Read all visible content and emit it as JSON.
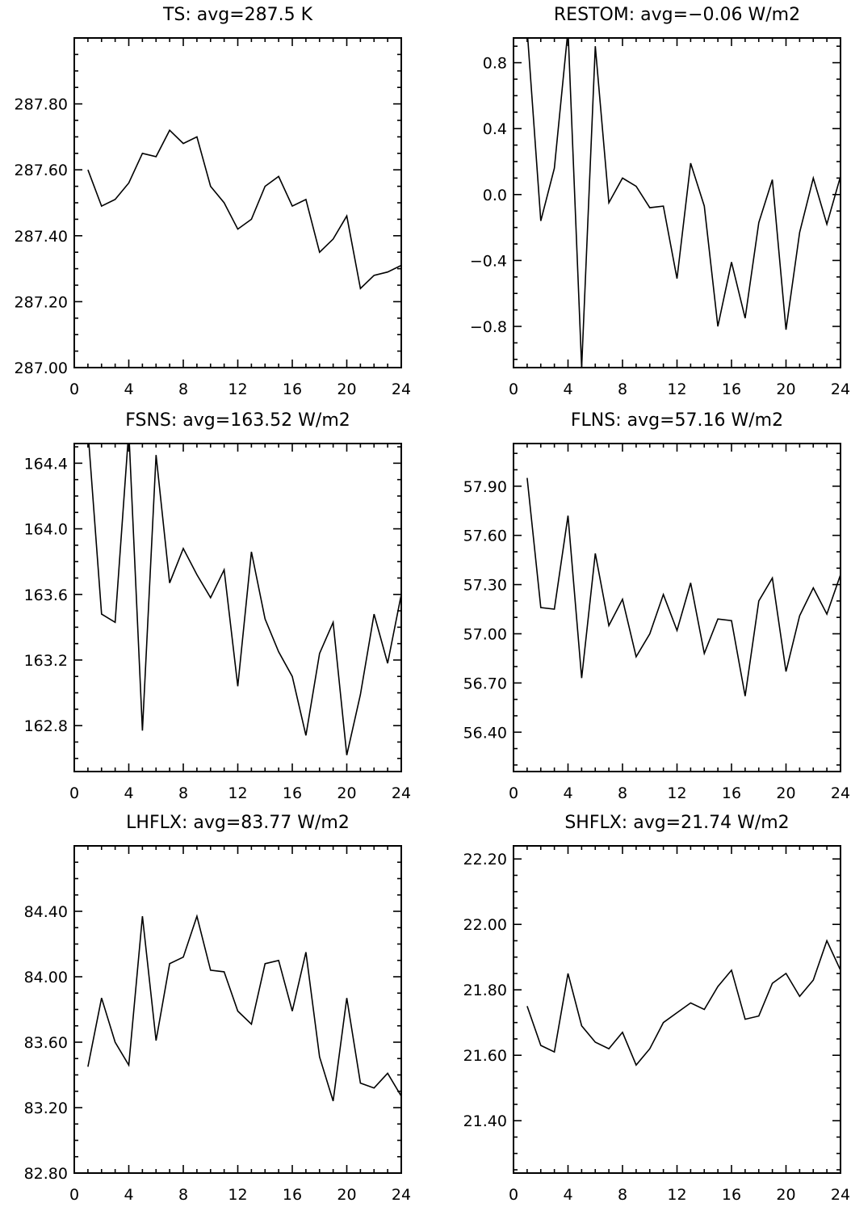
{
  "chart_data": [
    {
      "type": "line",
      "title": "TS: avg=287.5 K",
      "xlim": [
        0,
        24
      ],
      "ylim": [
        287.0,
        288.0
      ],
      "xticks": [
        0,
        4,
        8,
        12,
        16,
        20,
        24
      ],
      "xtick_labels": [
        "0",
        "4",
        "8",
        "12",
        "16",
        "20",
        "24"
      ],
      "yticks": [
        287.0,
        287.2,
        287.4,
        287.6,
        287.8
      ],
      "ytick_labels": [
        "287.00",
        "287.20",
        "287.40",
        "287.60",
        "287.80"
      ],
      "yminor": 0.05,
      "x": [
        1,
        2,
        3,
        4,
        5,
        6,
        7,
        8,
        9,
        10,
        11,
        12,
        13,
        14,
        15,
        16,
        17,
        18,
        19,
        20,
        21,
        22,
        23,
        24
      ],
      "y": [
        287.6,
        287.49,
        287.51,
        287.56,
        287.65,
        287.64,
        287.72,
        287.68,
        287.7,
        287.55,
        287.5,
        287.42,
        287.45,
        287.55,
        287.58,
        287.49,
        287.51,
        287.35,
        287.39,
        287.46,
        287.24,
        287.28,
        287.29,
        287.31
      ]
    },
    {
      "type": "line",
      "title": "RESTOM: avg=−0.06 W/m2",
      "xlim": [
        0,
        24
      ],
      "ylim": [
        -1.05,
        0.95
      ],
      "xticks": [
        0,
        4,
        8,
        12,
        16,
        20,
        24
      ],
      "xtick_labels": [
        "0",
        "4",
        "8",
        "12",
        "16",
        "20",
        "24"
      ],
      "yticks": [
        -0.8,
        -0.4,
        0.0,
        0.4,
        0.8
      ],
      "ytick_labels": [
        "−0.8",
        "−0.4",
        "0.0",
        "0.4",
        "0.8"
      ],
      "yminor": 0.1,
      "x": [
        1,
        2,
        3,
        4,
        5,
        6,
        7,
        8,
        9,
        10,
        11,
        12,
        13,
        14,
        15,
        16,
        17,
        18,
        19,
        20,
        21,
        22,
        23,
        24
      ],
      "y": [
        1.0,
        -0.16,
        0.16,
        1.0,
        -1.05,
        0.9,
        -0.05,
        0.1,
        0.05,
        -0.08,
        -0.07,
        -0.51,
        0.19,
        -0.07,
        -0.8,
        -0.41,
        -0.75,
        -0.17,
        0.09,
        -0.82,
        -0.23,
        0.1,
        -0.18,
        0.11
      ]
    },
    {
      "type": "line",
      "title": "FSNS: avg=163.52 W/m2",
      "xlim": [
        0,
        24
      ],
      "ylim": [
        162.52,
        164.52
      ],
      "xticks": [
        0,
        4,
        8,
        12,
        16,
        20,
        24
      ],
      "xtick_labels": [
        "0",
        "4",
        "8",
        "12",
        "16",
        "20",
        "24"
      ],
      "yticks": [
        162.8,
        163.2,
        163.6,
        164.0,
        164.4
      ],
      "ytick_labels": [
        "162.8",
        "163.2",
        "163.6",
        "164.0",
        "164.4"
      ],
      "yminor": 0.1,
      "x": [
        1,
        2,
        3,
        4,
        5,
        6,
        7,
        8,
        9,
        10,
        11,
        12,
        13,
        14,
        15,
        16,
        17,
        18,
        19,
        20,
        21,
        22,
        23,
        24
      ],
      "y": [
        164.6,
        163.48,
        163.43,
        164.6,
        162.77,
        164.45,
        163.67,
        163.88,
        163.72,
        163.58,
        163.75,
        163.04,
        163.86,
        163.45,
        163.25,
        163.1,
        162.74,
        163.24,
        163.43,
        162.62,
        162.99,
        163.48,
        163.18,
        163.6
      ]
    },
    {
      "type": "line",
      "title": "FLNS: avg=57.16 W/m2",
      "xlim": [
        0,
        24
      ],
      "ylim": [
        56.16,
        58.16
      ],
      "xticks": [
        0,
        4,
        8,
        12,
        16,
        20,
        24
      ],
      "xtick_labels": [
        "0",
        "4",
        "8",
        "12",
        "16",
        "20",
        "24"
      ],
      "yticks": [
        56.4,
        56.7,
        57.0,
        57.3,
        57.6,
        57.9
      ],
      "ytick_labels": [
        "56.40",
        "56.70",
        "57.00",
        "57.30",
        "57.60",
        "57.90"
      ],
      "yminor": 0.1,
      "x": [
        1,
        2,
        3,
        4,
        5,
        6,
        7,
        8,
        9,
        10,
        11,
        12,
        13,
        14,
        15,
        16,
        17,
        18,
        19,
        20,
        21,
        22,
        23,
        24
      ],
      "y": [
        57.95,
        57.16,
        57.15,
        57.72,
        56.73,
        57.49,
        57.05,
        57.21,
        56.86,
        57.0,
        57.24,
        57.02,
        57.31,
        56.88,
        57.09,
        57.08,
        56.62,
        57.2,
        57.34,
        56.77,
        57.11,
        57.28,
        57.12,
        57.36
      ]
    },
    {
      "type": "line",
      "title": "LHFLX: avg=83.77 W/m2",
      "xlim": [
        0,
        24
      ],
      "ylim": [
        82.8,
        84.8
      ],
      "xticks": [
        0,
        4,
        8,
        12,
        16,
        20,
        24
      ],
      "xtick_labels": [
        "0",
        "4",
        "8",
        "12",
        "16",
        "20",
        "24"
      ],
      "yticks": [
        82.8,
        83.2,
        83.6,
        84.0,
        84.4
      ],
      "ytick_labels": [
        "82.80",
        "83.20",
        "83.60",
        "84.00",
        "84.40"
      ],
      "yminor": 0.1,
      "x": [
        1,
        2,
        3,
        4,
        5,
        6,
        7,
        8,
        9,
        10,
        11,
        12,
        13,
        14,
        15,
        16,
        17,
        18,
        19,
        20,
        21,
        22,
        23,
        24
      ],
      "y": [
        83.45,
        83.87,
        83.6,
        83.46,
        84.37,
        83.61,
        84.08,
        84.12,
        84.37,
        84.04,
        84.03,
        83.79,
        83.71,
        84.08,
        84.1,
        83.79,
        84.15,
        83.51,
        83.24,
        83.87,
        83.35,
        83.32,
        83.41,
        83.27
      ]
    },
    {
      "type": "line",
      "title": "SHFLX: avg=21.74 W/m2",
      "xlim": [
        0,
        24
      ],
      "ylim": [
        21.24,
        22.24
      ],
      "xticks": [
        0,
        4,
        8,
        12,
        16,
        20,
        24
      ],
      "xtick_labels": [
        "0",
        "4",
        "8",
        "12",
        "16",
        "20",
        "24"
      ],
      "yticks": [
        21.4,
        21.6,
        21.8,
        22.0,
        22.2
      ],
      "ytick_labels": [
        "21.40",
        "21.60",
        "21.80",
        "22.00",
        "22.20"
      ],
      "yminor": 0.05,
      "x": [
        1,
        2,
        3,
        4,
        5,
        6,
        7,
        8,
        9,
        10,
        11,
        12,
        13,
        14,
        15,
        16,
        17,
        18,
        19,
        20,
        21,
        22,
        23,
        24
      ],
      "y": [
        21.75,
        21.63,
        21.61,
        21.85,
        21.69,
        21.64,
        21.62,
        21.67,
        21.57,
        21.62,
        21.7,
        21.73,
        21.76,
        21.74,
        21.81,
        21.86,
        21.71,
        21.72,
        21.82,
        21.85,
        21.78,
        21.83,
        21.95,
        21.86
      ]
    }
  ]
}
